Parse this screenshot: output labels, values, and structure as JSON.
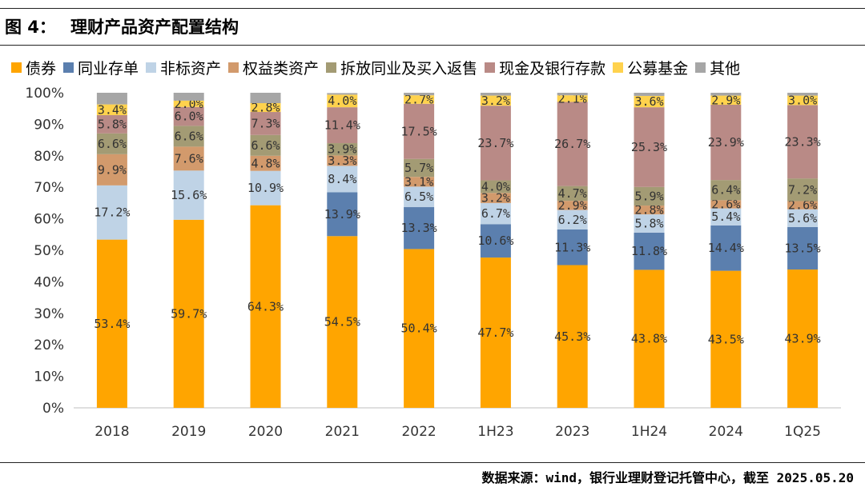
{
  "header": {
    "fig_label": "图 4：",
    "title": "理财产品资产配置结构"
  },
  "footer": {
    "source": "数据来源：wind，银行业理财登记托管中心，截至 2025.05.20"
  },
  "chart_data": {
    "type": "bar",
    "stacked": true,
    "title": "理财产品资产配置结构",
    "categories": [
      "2018",
      "2019",
      "2020",
      "2021",
      "2022",
      "1H23",
      "2023",
      "1H24",
      "2024",
      "1Q25"
    ],
    "ylim": [
      0,
      100
    ],
    "yticks": [
      "0%",
      "10%",
      "20%",
      "30%",
      "40%",
      "50%",
      "60%",
      "70%",
      "80%",
      "90%",
      "100%"
    ],
    "legend_position": "top",
    "grid": false,
    "series": [
      {
        "name": "债券",
        "color": "#FFA500",
        "values": [
          53.4,
          59.7,
          64.3,
          54.5,
          50.4,
          47.7,
          45.3,
          43.8,
          43.5,
          43.9
        ],
        "labels": [
          "53.4%",
          "59.7%",
          "64.3%",
          "54.5%",
          "50.4%",
          "47.7%",
          "45.3%",
          "43.8%",
          "43.5%",
          "43.9%"
        ]
      },
      {
        "name": "同业存单",
        "color": "#5B7FAE",
        "values": [
          0,
          0,
          0,
          13.9,
          13.3,
          10.6,
          11.3,
          11.8,
          14.4,
          13.5
        ],
        "labels": [
          "",
          "",
          "",
          "13.9%",
          "13.3%",
          "10.6%",
          "11.3%",
          "11.8%",
          "14.4%",
          "13.5%"
        ]
      },
      {
        "name": "非标资产",
        "color": "#BFD3E6",
        "values": [
          17.2,
          15.6,
          10.9,
          8.4,
          6.5,
          6.7,
          6.2,
          5.8,
          5.4,
          5.6
        ],
        "labels": [
          "17.2%",
          "15.6%",
          "10.9%",
          "8.4%",
          "6.5%",
          "6.7%",
          "6.2%",
          "5.8%",
          "5.4%",
          "5.6%"
        ]
      },
      {
        "name": "权益类资产",
        "color": "#D29A6C",
        "values": [
          9.9,
          7.6,
          4.8,
          3.3,
          3.1,
          3.2,
          2.9,
          2.8,
          2.6,
          2.6
        ],
        "labels": [
          "9.9%",
          "7.6%",
          "4.8%",
          "3.3%",
          "3.1%",
          "3.2%",
          "2.9%",
          "2.8%",
          "2.6%",
          "2.6%"
        ]
      },
      {
        "name": "拆放同业及买入返售",
        "color": "#A39B74",
        "values": [
          6.6,
          6.6,
          6.6,
          3.9,
          5.7,
          4.0,
          4.7,
          5.9,
          6.4,
          7.2
        ],
        "labels": [
          "6.6%",
          "6.6%",
          "6.6%",
          "3.9%",
          "5.7%",
          "4.0%",
          "4.7%",
          "5.9%",
          "6.4%",
          "7.2%"
        ]
      },
      {
        "name": "现金及银行存款",
        "color": "#B98A86",
        "values": [
          5.8,
          6.0,
          7.3,
          11.4,
          17.5,
          23.7,
          26.7,
          25.3,
          23.9,
          23.3
        ],
        "labels": [
          "5.8%",
          "6.0%",
          "7.3%",
          "11.4%",
          "17.5%",
          "23.7%",
          "26.7%",
          "25.3%",
          "23.9%",
          "23.3%"
        ]
      },
      {
        "name": "公募基金",
        "color": "#FFD24D",
        "values": [
          3.4,
          2.0,
          2.8,
          4.0,
          2.7,
          3.2,
          2.1,
          3.6,
          2.9,
          3.0
        ],
        "labels": [
          "3.4%",
          "2.0%",
          "2.8%",
          "4.0%",
          "2.7%",
          "3.2%",
          "2.1%",
          "3.6%",
          "2.9%",
          "3.0%"
        ]
      },
      {
        "name": "其他",
        "color": "#A6A6A6",
        "values": [
          3.7,
          2.5,
          3.3,
          0.5,
          0.8,
          0.9,
          0.8,
          1.0,
          0.9,
          0.9
        ],
        "labels": [
          "",
          "",
          "",
          "",
          "",
          "",
          "",
          "",
          "",
          ""
        ]
      }
    ]
  }
}
